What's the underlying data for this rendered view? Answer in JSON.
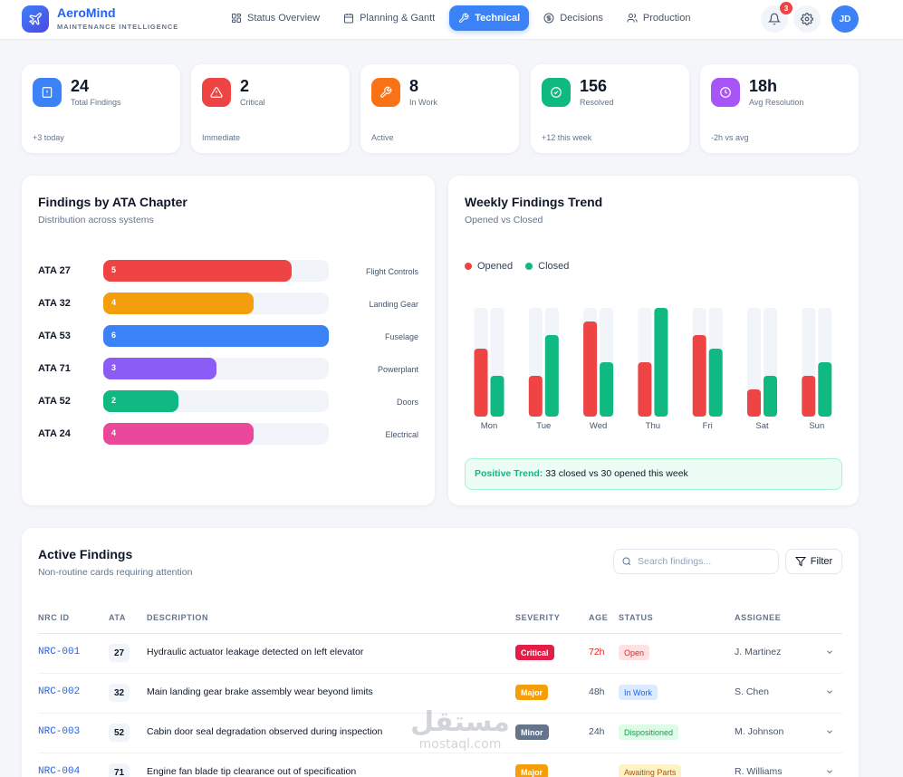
{
  "header": {
    "brand": "AeroMind",
    "tagline": "MAINTENANCE INTELLIGENCE",
    "nav": [
      {
        "label": "Status Overview",
        "icon": "grid-icon",
        "active": false
      },
      {
        "label": "Planning & Gantt",
        "icon": "calendar-icon",
        "active": false
      },
      {
        "label": "Technical",
        "icon": "wrench-icon",
        "active": true
      },
      {
        "label": "Decisions",
        "icon": "dollar-circle-icon",
        "active": false
      },
      {
        "label": "Production",
        "icon": "users-icon",
        "active": false
      }
    ],
    "notification_count": "3",
    "avatar_initials": "JD"
  },
  "stats": [
    {
      "value": "24",
      "label": "Total Findings",
      "footnote": "+3 today",
      "icon": "alert-square-icon",
      "color": "#3b82f6"
    },
    {
      "value": "2",
      "label": "Critical",
      "footnote": "Immediate",
      "icon": "warning-triangle-icon",
      "color": "#ef4444"
    },
    {
      "value": "8",
      "label": "In Work",
      "footnote": "Active",
      "icon": "wrench-icon",
      "color": "#f97316"
    },
    {
      "value": "156",
      "label": "Resolved",
      "footnote": "+12 this week",
      "icon": "check-circle-icon",
      "color": "#10b981"
    },
    {
      "value": "18h",
      "label": "Avg Resolution",
      "footnote": "-2h vs avg",
      "icon": "clock-icon",
      "color": "#a855f7"
    }
  ],
  "ata_panel": {
    "title": "Findings by ATA Chapter",
    "subtitle": "Distribution across systems",
    "max_value": 6,
    "rows": [
      {
        "code": "ATA 27",
        "count": 5,
        "system": "Flight Controls",
        "color": "#ef4444"
      },
      {
        "code": "ATA 32",
        "count": 4,
        "system": "Landing Gear",
        "color": "#f59e0b"
      },
      {
        "code": "ATA 53",
        "count": 6,
        "system": "Fuselage",
        "color": "#3b82f6"
      },
      {
        "code": "ATA 71",
        "count": 3,
        "system": "Powerplant",
        "color": "#8b5cf6"
      },
      {
        "code": "ATA 52",
        "count": 2,
        "system": "Doors",
        "color": "#10b981"
      },
      {
        "code": "ATA 24",
        "count": 4,
        "system": "Electrical",
        "color": "#ec4899"
      }
    ]
  },
  "trend_panel": {
    "title": "Weekly Findings Trend",
    "subtitle": "Opened vs Closed",
    "legend": {
      "opened": "Opened",
      "closed": "Closed"
    },
    "colors": {
      "opened": "#ef4444",
      "closed": "#10b981",
      "track": "#f1f5f9"
    },
    "summary_label": "Positive Trend:",
    "summary_text": "33 closed vs 30 opened this week"
  },
  "chart_data": {
    "type": "bar",
    "categories": [
      "Mon",
      "Tue",
      "Wed",
      "Thu",
      "Fri",
      "Sat",
      "Sun"
    ],
    "series": [
      {
        "name": "Opened",
        "values": [
          5,
          3,
          7,
          4,
          6,
          2,
          3
        ]
      },
      {
        "name": "Closed",
        "values": [
          3,
          6,
          4,
          8,
          5,
          3,
          4
        ]
      }
    ],
    "ylim": [
      0,
      8
    ],
    "legend": "top-left"
  },
  "findings": {
    "title": "Active Findings",
    "subtitle": "Non-routine cards requiring attention",
    "search_placeholder": "Search findings...",
    "filter_label": "Filter",
    "columns": [
      "NRC ID",
      "ATA",
      "DESCRIPTION",
      "SEVERITY",
      "AGE",
      "STATUS",
      "ASSIGNEE"
    ],
    "rows": [
      {
        "id": "NRC-001",
        "ata": "27",
        "description": "Hydraulic actuator leakage detected on left elevator",
        "severity": "Critical",
        "severity_color": "#e11d48",
        "age": "72h",
        "age_color": "#dc2626",
        "status": "Open",
        "status_bg": "#fee2e2",
        "status_color": "#dc2626",
        "assignee": "J. Martinez"
      },
      {
        "id": "NRC-002",
        "ata": "32",
        "description": "Main landing gear brake assembly wear beyond limits",
        "severity": "Major",
        "severity_color": "#f59e0b",
        "age": "48h",
        "age_color": "#475569",
        "status": "In Work",
        "status_bg": "#dbeafe",
        "status_color": "#2563eb",
        "assignee": "S. Chen"
      },
      {
        "id": "NRC-003",
        "ata": "52",
        "description": "Cabin door seal degradation observed during inspection",
        "severity": "Minor",
        "severity_color": "#64748b",
        "age": "24h",
        "age_color": "#475569",
        "status": "Dispositioned",
        "status_bg": "#dcfce7",
        "status_color": "#16a34a",
        "assignee": "M. Johnson"
      },
      {
        "id": "NRC-004",
        "ata": "71",
        "description": "Engine fan blade tip clearance out of specification",
        "severity": "Major",
        "severity_color": "#f59e0b",
        "age": "",
        "age_color": "#475569",
        "status": "Awaiting Parts",
        "status_bg": "#fef3c7",
        "status_color": "#b45309",
        "assignee": "R. Williams"
      }
    ]
  },
  "watermark": {
    "main": "مستقل",
    "sub": "mostaql.com"
  }
}
